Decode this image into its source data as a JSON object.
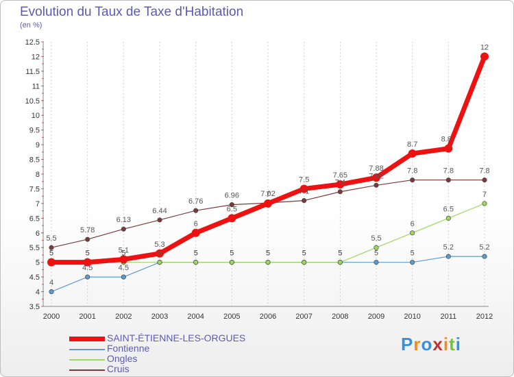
{
  "title": "Evolution du Taux de Taxe d'Habitation",
  "subtitle": "(en %)",
  "logo": "Proxiti",
  "logo_colors": [
    "#3a8fd8",
    "#f28a1e",
    "#3a8fd8",
    "#c03030",
    "#f28a1e",
    "#7abd3a",
    "#3a8fd8"
  ],
  "chart_data": {
    "type": "line",
    "title": "Evolution du Taux de Taxe d'Habitation",
    "ylabel": "(en %)",
    "xlabel": "",
    "ylim": [
      3.5,
      12.5
    ],
    "yticks": [
      3.5,
      4,
      4.5,
      5,
      5.5,
      6,
      6.5,
      7,
      7.5,
      8,
      8.5,
      9,
      9.5,
      10,
      10.5,
      11,
      11.5,
      12,
      12.5
    ],
    "ytick_labels": [
      "3.5",
      "4",
      "4.5",
      "5",
      "5.5",
      "6",
      "6.5",
      "7",
      "7.5",
      "8",
      "8.5",
      "9",
      "9.5",
      "10",
      "10.5",
      "11",
      "11.5",
      "12",
      "12.5"
    ],
    "x": [
      "2000",
      "2001",
      "2002",
      "2003",
      "2004",
      "2005",
      "2006",
      "2007",
      "2008",
      "2009",
      "2010",
      "2011",
      "2012"
    ],
    "legend_position": "bottom-left",
    "grid": "vertical dashed",
    "series": [
      {
        "name": "Cruis",
        "color": "#7a3a3a",
        "width": 1.2,
        "marker_r": 3.2,
        "values": [
          5.5,
          5.78,
          6.13,
          6.44,
          6.76,
          6.96,
          7.02,
          7.1,
          7.4,
          7.62,
          7.8,
          7.8,
          7.8
        ],
        "labels": [
          "5.5",
          "5.78",
          "6.13",
          "6.44",
          "6.76",
          "6.96",
          "7.02",
          "7.1",
          "7.4",
          "7.62",
          "7.8",
          "7.8",
          "7.8"
        ]
      },
      {
        "name": "Fontienne",
        "color": "#5b9bd0",
        "width": 1.2,
        "marker_r": 3.2,
        "values": [
          4,
          4.5,
          4.5,
          5,
          5,
          5,
          5,
          5,
          5,
          5,
          5,
          5.2,
          5.2
        ],
        "labels": [
          "4",
          "4.5",
          "4.5",
          "5",
          "5",
          "5",
          "5",
          "5",
          "5",
          "5",
          "5",
          "5.2",
          "5.2"
        ]
      },
      {
        "name": "Ongles",
        "color": "#9ed860",
        "width": 1.2,
        "marker_r": 3.2,
        "values": [
          5,
          5,
          5,
          5,
          5,
          5,
          5,
          5,
          5,
          5.5,
          6,
          6.5,
          7
        ],
        "labels": [
          "5",
          "5",
          "5",
          "5",
          "5",
          "5",
          "5",
          "5",
          "5",
          "5.5",
          "6",
          "6.5",
          "7"
        ]
      },
      {
        "name": "SAINT-ÉTIENNE-LES-ORGUES",
        "color": "#ee1111",
        "width": 7,
        "marker_r": 6,
        "values": [
          5,
          5,
          5.1,
          5.3,
          6,
          6.5,
          7,
          7.5,
          7.65,
          7.88,
          8.7,
          8.87,
          12
        ],
        "labels": [
          "5",
          "5",
          "5.1",
          "5.3",
          "6",
          "6.5",
          "7",
          "7.5",
          "7.65",
          "7.88",
          "8.7",
          "8.87",
          "12"
        ]
      }
    ]
  },
  "legend": [
    {
      "label": "SAINT-ÉTIENNE-LES-ORGUES",
      "color": "#ee1111",
      "thickness": 7
    },
    {
      "label": "Fontienne",
      "color": "#5b9bd0",
      "thickness": 2
    },
    {
      "label": "Ongles",
      "color": "#9ed860",
      "thickness": 2
    },
    {
      "label": "Cruis",
      "color": "#7a3a3a",
      "thickness": 2
    }
  ]
}
